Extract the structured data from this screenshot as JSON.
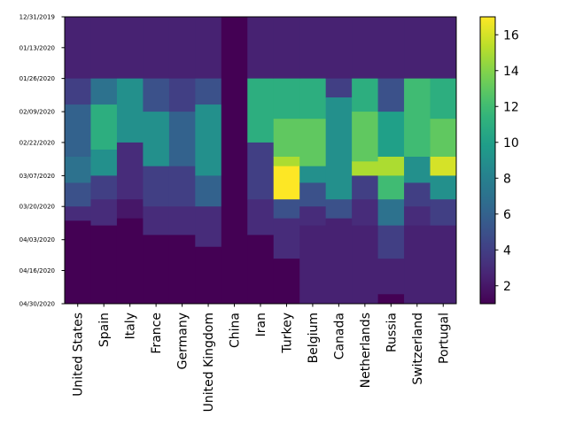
{
  "chart_data": {
    "type": "heatmap",
    "title": "",
    "xlabel": "",
    "ylabel": "",
    "colormap": "viridis",
    "color_range": [
      1,
      17
    ],
    "colorbar_ticks": [
      2,
      4,
      6,
      8,
      10,
      12,
      14,
      16
    ],
    "countries": [
      "United States",
      "Spain",
      "Italy",
      "France",
      "Germany",
      "United Kingdom",
      "China",
      "Iran",
      "Turkey",
      "Belgium",
      "Canada",
      "Netherlands",
      "Russia",
      "Switzerland",
      "Portugal"
    ],
    "date_range": [
      "12/31/2019",
      "04/30/2020"
    ],
    "date_ticks": [
      "12/31/2019",
      "01/13/2020",
      "01/26/2020",
      "02/09/2020",
      "02/22/2020",
      "03/07/2020",
      "03/20/2020",
      "04/03/2020",
      "04/16/2020",
      "04/30/2020"
    ],
    "series": [
      {
        "name": "United States",
        "segments": [
          [
            "12/31/2019",
            "01/26/2020",
            2.5
          ],
          [
            "01/26/2020",
            "02/06/2020",
            4
          ],
          [
            "02/06/2020",
            "02/28/2020",
            6
          ],
          [
            "02/28/2020",
            "03/10/2020",
            7
          ],
          [
            "03/10/2020",
            "03/20/2020",
            5
          ],
          [
            "03/20/2020",
            "03/26/2020",
            3
          ],
          [
            "03/26/2020",
            "04/30/2020",
            1
          ]
        ]
      },
      {
        "name": "Spain",
        "segments": [
          [
            "12/31/2019",
            "01/26/2020",
            2.5
          ],
          [
            "01/26/2020",
            "02/06/2020",
            7
          ],
          [
            "02/06/2020",
            "02/25/2020",
            11
          ],
          [
            "02/25/2020",
            "03/07/2020",
            9
          ],
          [
            "03/07/2020",
            "03/17/2020",
            4
          ],
          [
            "03/17/2020",
            "03/28/2020",
            3
          ],
          [
            "03/28/2020",
            "04/30/2020",
            1
          ]
        ]
      },
      {
        "name": "Italy",
        "segments": [
          [
            "12/31/2019",
            "01/26/2020",
            2.5
          ],
          [
            "01/26/2020",
            "02/22/2020",
            9
          ],
          [
            "02/22/2020",
            "03/17/2020",
            3
          ],
          [
            "03/17/2020",
            "03/25/2020",
            2
          ],
          [
            "03/25/2020",
            "04/30/2020",
            1
          ]
        ]
      },
      {
        "name": "France",
        "segments": [
          [
            "12/31/2019",
            "01/26/2020",
            2.5
          ],
          [
            "01/26/2020",
            "02/09/2020",
            5
          ],
          [
            "02/09/2020",
            "03/03/2020",
            9
          ],
          [
            "03/03/2020",
            "03/20/2020",
            4
          ],
          [
            "03/20/2020",
            "04/01/2020",
            3
          ],
          [
            "04/01/2020",
            "04/30/2020",
            1
          ]
        ]
      },
      {
        "name": "Germany",
        "segments": [
          [
            "12/31/2019",
            "01/26/2020",
            2.5
          ],
          [
            "01/26/2020",
            "02/09/2020",
            4
          ],
          [
            "02/09/2020",
            "03/03/2020",
            6
          ],
          [
            "03/03/2020",
            "03/20/2020",
            4
          ],
          [
            "03/20/2020",
            "04/01/2020",
            3
          ],
          [
            "04/01/2020",
            "04/30/2020",
            1
          ]
        ]
      },
      {
        "name": "United Kingdom",
        "segments": [
          [
            "12/31/2019",
            "01/26/2020",
            2.5
          ],
          [
            "01/26/2020",
            "02/06/2020",
            5
          ],
          [
            "02/06/2020",
            "03/07/2020",
            9
          ],
          [
            "03/07/2020",
            "03/20/2020",
            6
          ],
          [
            "03/20/2020",
            "04/06/2020",
            3
          ],
          [
            "04/06/2020",
            "04/30/2020",
            1
          ]
        ]
      },
      {
        "name": "China",
        "segments": [
          [
            "12/31/2019",
            "04/30/2020",
            1
          ]
        ]
      },
      {
        "name": "Iran",
        "segments": [
          [
            "12/31/2019",
            "01/26/2020",
            2.5
          ],
          [
            "01/26/2020",
            "02/22/2020",
            11
          ],
          [
            "02/22/2020",
            "03/17/2020",
            4
          ],
          [
            "03/17/2020",
            "04/01/2020",
            3
          ],
          [
            "04/01/2020",
            "04/30/2020",
            1
          ]
        ]
      },
      {
        "name": "Turkey",
        "segments": [
          [
            "12/31/2019",
            "01/26/2020",
            2.5
          ],
          [
            "01/26/2020",
            "02/12/2020",
            11
          ],
          [
            "02/12/2020",
            "02/28/2020",
            13
          ],
          [
            "02/28/2020",
            "03/03/2020",
            15
          ],
          [
            "03/03/2020",
            "03/17/2020",
            17
          ],
          [
            "03/17/2020",
            "03/25/2020",
            5
          ],
          [
            "03/25/2020",
            "04/11/2020",
            3
          ],
          [
            "04/11/2020",
            "04/30/2020",
            1
          ]
        ]
      },
      {
        "name": "Belgium",
        "segments": [
          [
            "12/31/2019",
            "01/26/2020",
            2.5
          ],
          [
            "01/26/2020",
            "02/12/2020",
            11
          ],
          [
            "02/12/2020",
            "03/03/2020",
            13
          ],
          [
            "03/03/2020",
            "03/10/2020",
            9
          ],
          [
            "03/10/2020",
            "03/20/2020",
            5
          ],
          [
            "03/20/2020",
            "03/28/2020",
            3
          ],
          [
            "03/28/2020",
            "04/30/2020",
            2.5
          ]
        ]
      },
      {
        "name": "Canada",
        "segments": [
          [
            "12/31/2019",
            "01/26/2020",
            2.5
          ],
          [
            "01/26/2020",
            "02/03/2020",
            4
          ],
          [
            "02/03/2020",
            "03/17/2020",
            9
          ],
          [
            "03/17/2020",
            "03/25/2020",
            5
          ],
          [
            "03/25/2020",
            "04/30/2020",
            2.5
          ]
        ]
      },
      {
        "name": "Netherlands",
        "segments": [
          [
            "12/31/2019",
            "01/26/2020",
            2.5
          ],
          [
            "01/26/2020",
            "02/09/2020",
            11
          ],
          [
            "02/09/2020",
            "03/01/2020",
            13
          ],
          [
            "03/01/2020",
            "03/07/2020",
            15
          ],
          [
            "03/07/2020",
            "03/17/2020",
            4
          ],
          [
            "03/17/2020",
            "03/28/2020",
            3
          ],
          [
            "03/28/2020",
            "04/30/2020",
            2.5
          ]
        ]
      },
      {
        "name": "Russia",
        "segments": [
          [
            "12/31/2019",
            "01/26/2020",
            2.5
          ],
          [
            "01/26/2020",
            "02/09/2020",
            5
          ],
          [
            "02/09/2020",
            "02/28/2020",
            10
          ],
          [
            "02/28/2020",
            "03/07/2020",
            15
          ],
          [
            "03/07/2020",
            "03/17/2020",
            12
          ],
          [
            "03/17/2020",
            "03/28/2020",
            7
          ],
          [
            "03/28/2020",
            "04/11/2020",
            4
          ],
          [
            "04/11/2020",
            "04/26/2020",
            2.5
          ],
          [
            "04/26/2020",
            "04/30/2020",
            1
          ]
        ]
      },
      {
        "name": "Switzerland",
        "segments": [
          [
            "12/31/2019",
            "01/26/2020",
            2.5
          ],
          [
            "01/26/2020",
            "02/28/2020",
            12
          ],
          [
            "02/28/2020",
            "03/10/2020",
            9
          ],
          [
            "03/10/2020",
            "03/20/2020",
            4
          ],
          [
            "03/20/2020",
            "03/28/2020",
            3
          ],
          [
            "03/28/2020",
            "04/30/2020",
            2.5
          ]
        ]
      },
      {
        "name": "Portugal",
        "segments": [
          [
            "12/31/2019",
            "01/26/2020",
            2.5
          ],
          [
            "01/26/2020",
            "02/12/2020",
            11
          ],
          [
            "02/12/2020",
            "02/28/2020",
            13
          ],
          [
            "02/28/2020",
            "03/07/2020",
            16
          ],
          [
            "03/07/2020",
            "03/17/2020",
            9
          ],
          [
            "03/17/2020",
            "03/28/2020",
            4
          ],
          [
            "03/28/2020",
            "04/30/2020",
            2.5
          ]
        ]
      }
    ]
  }
}
